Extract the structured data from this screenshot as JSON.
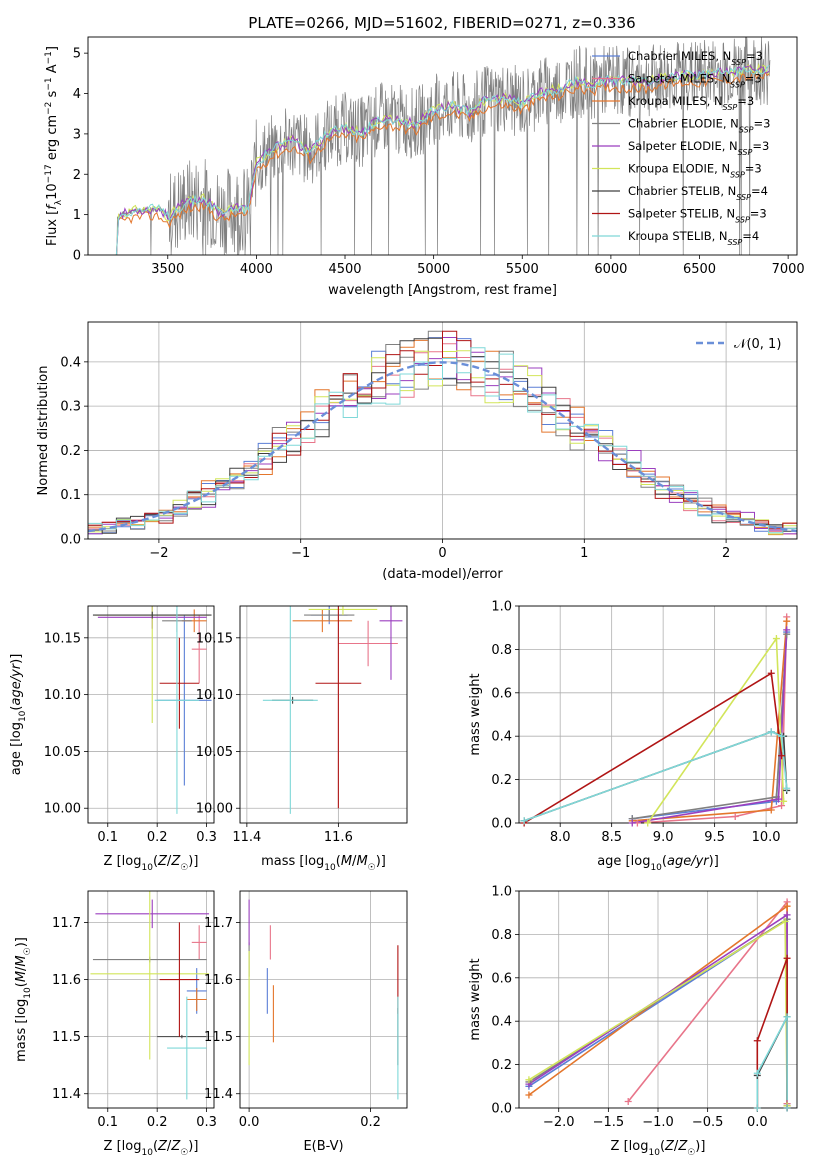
{
  "figure_title": "PLATE=0266, MJD=51602, FIBERID=0271, z=0.336",
  "colors": {
    "Chabrier MILES": "#5b7fd6",
    "Salpeter MILES": "#e8758a",
    "Kroupa MILES": "#e4762c",
    "Chabrier ELODIE": "#808080",
    "Salpeter ELODIE": "#9b3fbf",
    "Kroupa ELODIE": "#d2e55a",
    "Chabrier STELIB": "#404040",
    "Salpeter STELIB": "#b01515",
    "Kroupa STELIB": "#7fd8d8",
    "gaussian": "#6a8fd8"
  },
  "chart_data": [
    {
      "id": "spectrum",
      "type": "line",
      "title": "PLATE=0266, MJD=51602, FIBERID=0271, z=0.336",
      "xlabel": "wavelength [Angstrom, rest frame]",
      "ylabel": "Flux [f_λ 10^-17 erg cm^-2 s^-1 A^-1]",
      "xlim": [
        3050,
        7050
      ],
      "ylim": [
        0,
        5.4
      ],
      "xticks": [
        "3500",
        "4000",
        "4500",
        "5000",
        "5500",
        "6000",
        "6500",
        "7000"
      ],
      "yticks": [
        "0",
        "1",
        "2",
        "3",
        "4",
        "5"
      ],
      "legend": [
        "Chabrier MILES, N_SSP=3",
        "Salpeter MILES, N_SSP=3",
        "Kroupa MILES, N_SSP=3",
        "Chabrier ELODIE, N_SSP=3",
        "Salpeter ELODIE, N_SSP=3",
        "Kroupa ELODIE, N_SSP=3",
        "Chabrier STELIB, N_SSP=4",
        "Salpeter STELIB, N_SSP=3",
        "Kroupa STELIB, N_SSP=4"
      ],
      "continuum": {
        "x": [
          3210,
          3300,
          3450,
          3500,
          3600,
          3700,
          3800,
          3900,
          3950,
          4000,
          4100,
          4200,
          4300,
          4400,
          4500,
          4600,
          4700,
          4800,
          4900,
          5000,
          5100,
          5200,
          5300,
          5400,
          5500,
          5600,
          5700,
          5800,
          5900,
          6000,
          6100,
          6200,
          6300,
          6400,
          6500,
          6600,
          6700,
          6800,
          6900
        ],
        "y": [
          0.95,
          1.1,
          1.15,
          0.95,
          1.3,
          1.4,
          1.05,
          1.2,
          1.1,
          2.3,
          2.65,
          2.85,
          2.55,
          3.0,
          3.15,
          3.05,
          3.4,
          3.35,
          3.25,
          3.6,
          3.7,
          3.55,
          3.85,
          3.9,
          3.75,
          4.05,
          4.1,
          4.3,
          4.25,
          4.35,
          4.3,
          4.3,
          4.4,
          4.45,
          4.45,
          4.5,
          4.55,
          4.6,
          4.6
        ]
      }
    },
    {
      "id": "residuals",
      "type": "line",
      "xlabel": "(data-model)/error",
      "ylabel": "Normed distribution",
      "xlim": [
        -2.5,
        2.5
      ],
      "ylim": [
        0,
        0.49
      ],
      "xticks": [
        "−2",
        "−1",
        "0",
        "1",
        "2"
      ],
      "yticks": [
        "0.0",
        "0.1",
        "0.2",
        "0.3",
        "0.4"
      ],
      "legend": [
        "𝒩(0, 1)"
      ]
    },
    {
      "id": "age-vs-Z",
      "type": "scatter",
      "xlabel": "Z [log10(Z/Z☉)]",
      "ylabel": "age [log10(age/yr)]",
      "xlim": [
        0.06,
        0.315
      ],
      "ylim": [
        9.987,
        10.178
      ],
      "xticks": [
        "0.1",
        "0.2",
        "0.3"
      ],
      "yticks": [
        "10.00",
        "10.05",
        "10.10",
        "10.15"
      ],
      "errorbars": [
        {
          "series": "Chabrier MILES",
          "x": 0.255,
          "y": 10.095,
          "xerr": 0.055,
          "yerr": 0.075
        },
        {
          "series": "Salpeter MILES",
          "x": 0.285,
          "y": 10.14,
          "xerr": 0.015,
          "yerr": 0.03
        },
        {
          "series": "Kroupa MILES",
          "x": 0.275,
          "y": 10.165,
          "xerr": 0.025,
          "yerr": 0.01
        },
        {
          "series": "Chabrier ELODIE",
          "x": 0.24,
          "y": 10.165,
          "xerr": 0.03,
          "yerr": 0.01
        },
        {
          "series": "Salpeter ELODIE",
          "x": 0.19,
          "y": 10.168,
          "xerr": 0.11,
          "yerr": 0.01
        },
        {
          "series": "Kroupa ELODIE",
          "x": 0.19,
          "y": 10.17,
          "xerr": 0.115,
          "yerr": 0.095
        },
        {
          "series": "Chabrier STELIB",
          "x": 0.19,
          "y": 10.17,
          "xerr": 0.12,
          "yerr": 0.003
        },
        {
          "series": "Salpeter STELIB",
          "x": 0.245,
          "y": 10.11,
          "xerr": 0.04,
          "yerr": 0.04
        },
        {
          "series": "Kroupa STELIB",
          "x": 0.24,
          "y": 10.095,
          "xerr": 0.045,
          "yerr": 0.1
        }
      ]
    },
    {
      "id": "age-vs-mass",
      "type": "scatter",
      "xlabel": "mass [log10(M/M☉)]",
      "ylabel": "",
      "xlim": [
        11.385,
        11.75
      ],
      "ylim": [
        9.987,
        10.178
      ],
      "xticks": [
        "11.4",
        "11.6"
      ],
      "yticks": [
        "10.00",
        "10.05",
        "10.10",
        "10.15"
      ],
      "errorbars": [
        {
          "series": "Chabrier MILES",
          "x": 11.58,
          "y": 10.17,
          "xerr": 0.04,
          "yerr": 0.008
        },
        {
          "series": "Salpeter MILES",
          "x": 11.665,
          "y": 10.145,
          "xerr": 0.065,
          "yerr": 0.02
        },
        {
          "series": "Kroupa MILES",
          "x": 11.565,
          "y": 10.165,
          "xerr": 0.065,
          "yerr": 0.01
        },
        {
          "series": "Chabrier ELODIE",
          "x": 11.58,
          "y": 10.17,
          "xerr": 0.055,
          "yerr": 0.005
        },
        {
          "series": "Salpeter ELODIE",
          "x": 11.715,
          "y": 10.165,
          "xerr": 0.025,
          "yerr": 0.052
        },
        {
          "series": "Kroupa ELODIE",
          "x": 11.61,
          "y": 10.175,
          "xerr": 0.075,
          "yerr": 0.005
        },
        {
          "series": "Chabrier STELIB",
          "x": 11.5,
          "y": 10.095,
          "xerr": 0.045,
          "yerr": 0.003
        },
        {
          "series": "Salpeter STELIB",
          "x": 11.6,
          "y": 10.11,
          "xerr": 0.05,
          "yerr": 0.11
        },
        {
          "series": "Kroupa STELIB",
          "x": 11.495,
          "y": 10.095,
          "xerr": 0.06,
          "yerr": 0.1
        }
      ]
    },
    {
      "id": "mass-weight-vs-age",
      "type": "line",
      "xlabel": "age [log10(age/yr)]",
      "ylabel": "mass weight",
      "xlim": [
        7.6,
        10.3
      ],
      "ylim": [
        0,
        1.0
      ],
      "xticks": [
        "8.0",
        "8.5",
        "9.0",
        "9.5",
        "10.0"
      ],
      "yticks": [
        "0.0",
        "0.2",
        "0.4",
        "0.6",
        "0.8",
        "1.0"
      ],
      "series": [
        {
          "name": "Chabrier MILES",
          "x": [
            8.7,
            10.1,
            10.2
          ],
          "y": [
            0.02,
            0.1,
            0.88
          ]
        },
        {
          "name": "Salpeter MILES",
          "x": [
            8.75,
            9.7,
            10.15,
            10.2
          ],
          "y": [
            0.0,
            0.03,
            0.08,
            0.95
          ]
        },
        {
          "name": "Kroupa MILES",
          "x": [
            8.7,
            10.05,
            10.2
          ],
          "y": [
            0.01,
            0.06,
            0.93
          ]
        },
        {
          "name": "Chabrier ELODIE",
          "x": [
            8.7,
            10.1,
            10.2
          ],
          "y": [
            0.02,
            0.12,
            0.87
          ]
        },
        {
          "name": "Salpeter ELODIE",
          "x": [
            8.7,
            10.12,
            10.2
          ],
          "y": [
            0.0,
            0.11,
            0.89
          ]
        },
        {
          "name": "Kroupa ELODIE",
          "x": [
            8.85,
            10.1,
            10.17
          ],
          "y": [
            0.0,
            0.85,
            0.1
          ]
        },
        {
          "name": "Chabrier STELIB",
          "x": [
            7.65,
            10.05,
            10.17,
            10.2
          ],
          "y": [
            0.01,
            0.42,
            0.4,
            0.15
          ]
        },
        {
          "name": "Salpeter STELIB",
          "x": [
            7.65,
            10.05,
            10.15
          ],
          "y": [
            0.0,
            0.69,
            0.31
          ]
        },
        {
          "name": "Kroupa STELIB",
          "x": [
            7.65,
            10.05,
            10.15,
            10.2
          ],
          "y": [
            0.01,
            0.42,
            0.4,
            0.16
          ]
        }
      ]
    },
    {
      "id": "mass-vs-Z",
      "type": "scatter",
      "xlabel": "Z [log10(Z/Z☉)]",
      "ylabel": "mass [log10(M/M☉)]",
      "xlim": [
        0.06,
        0.315
      ],
      "ylim": [
        11.375,
        11.755
      ],
      "xticks": [
        "0.1",
        "0.2",
        "0.3"
      ],
      "yticks": [
        "11.4",
        "11.5",
        "11.6",
        "11.7"
      ],
      "errorbars": [
        {
          "series": "Chabrier MILES",
          "x": 0.28,
          "y": 11.58,
          "xerr": 0.02,
          "yerr": 0.04
        },
        {
          "series": "Salpeter MILES",
          "x": 0.285,
          "y": 11.665,
          "xerr": 0.015,
          "yerr": 0.03
        },
        {
          "series": "Kroupa MILES",
          "x": 0.28,
          "y": 11.565,
          "xerr": 0.02,
          "yerr": 0.02
        },
        {
          "series": "Chabrier ELODIE",
          "x": 0.185,
          "y": 11.635,
          "xerr": 0.115,
          "yerr": 0.005
        },
        {
          "series": "Salpeter ELODIE",
          "x": 0.19,
          "y": 11.715,
          "xerr": 0.115,
          "yerr": 0.025
        },
        {
          "series": "Kroupa ELODIE",
          "x": 0.185,
          "y": 11.61,
          "xerr": 0.12,
          "yerr": 0.15
        },
        {
          "series": "Chabrier STELIB",
          "x": 0.25,
          "y": 11.5,
          "xerr": 0.05,
          "yerr": 0.003
        },
        {
          "series": "Salpeter STELIB",
          "x": 0.245,
          "y": 11.6,
          "xerr": 0.04,
          "yerr": 0.1
        },
        {
          "series": "Kroupa STELIB",
          "x": 0.26,
          "y": 11.48,
          "xerr": 0.04,
          "yerr": 0.09
        }
      ]
    },
    {
      "id": "mass-vs-EBV",
      "type": "scatter",
      "xlabel": "E(B-V)",
      "ylabel": "",
      "xlim": [
        -0.015,
        0.26
      ],
      "ylim": [
        11.375,
        11.755
      ],
      "xticks": [
        "0.0",
        "0.2"
      ],
      "yticks": [
        "11.4",
        "11.5",
        "11.6",
        "11.7"
      ],
      "errorbars": [
        {
          "series": "Chabrier MILES",
          "x": 0.03,
          "y": 11.58,
          "xerr": 0,
          "yerr": 0.04
        },
        {
          "series": "Salpeter MILES",
          "x": 0.035,
          "y": 11.665,
          "xerr": 0,
          "yerr": 0.03
        },
        {
          "series": "Kroupa MILES",
          "x": 0.04,
          "y": 11.54,
          "xerr": 0,
          "yerr": 0.05
        },
        {
          "series": "Chabrier ELODIE",
          "x": 0.0,
          "y": 11.635,
          "xerr": 0,
          "yerr": 0.03
        },
        {
          "series": "Salpeter ELODIE",
          "x": 0.0,
          "y": 11.7,
          "xerr": 0,
          "yerr": 0.04
        },
        {
          "series": "Kroupa ELODIE",
          "x": 0.0,
          "y": 11.55,
          "xerr": 0,
          "yerr": 0.1
        },
        {
          "series": "Chabrier STELIB",
          "x": 0.245,
          "y": 11.5,
          "xerr": 0,
          "yerr": 0.05
        },
        {
          "series": "Salpeter STELIB",
          "x": 0.245,
          "y": 11.6,
          "xerr": 0,
          "yerr": 0.06
        },
        {
          "series": "Kroupa STELIB",
          "x": 0.245,
          "y": 11.48,
          "xerr": 0,
          "yerr": 0.09
        }
      ]
    },
    {
      "id": "mass-weight-vs-Z",
      "type": "line",
      "xlabel": "Z [log10(Z/Z☉)]",
      "ylabel": "mass weight",
      "xlim": [
        -2.4,
        0.4
      ],
      "ylim": [
        0,
        1.0
      ],
      "xticks": [
        "−2.0",
        "−1.5",
        "−1.0",
        "−0.5",
        "0.0"
      ],
      "yticks": [
        "0.0",
        "0.2",
        "0.4",
        "0.6",
        "0.8",
        "1.0"
      ],
      "series": [
        {
          "name": "Chabrier MILES",
          "x": [
            -2.3,
            0.3,
            0.3
          ],
          "y": [
            0.1,
            0.87,
            0.02
          ]
        },
        {
          "name": "Salpeter MILES",
          "x": [
            -1.3,
            0.3,
            0.3
          ],
          "y": [
            0.03,
            0.95,
            0.02
          ]
        },
        {
          "name": "Kroupa MILES",
          "x": [
            -2.3,
            0.3,
            0.3
          ],
          "y": [
            0.06,
            0.93,
            0.01
          ]
        },
        {
          "name": "Chabrier ELODIE",
          "x": [
            -2.3,
            0.3,
            0.3
          ],
          "y": [
            0.12,
            0.87,
            0.01
          ]
        },
        {
          "name": "Salpeter ELODIE",
          "x": [
            -2.3,
            0.3,
            0.3
          ],
          "y": [
            0.11,
            0.89,
            0.0
          ]
        },
        {
          "name": "Kroupa ELODIE",
          "x": [
            -2.3,
            0.28,
            0.3
          ],
          "y": [
            0.13,
            0.86,
            0.01
          ]
        },
        {
          "name": "Chabrier STELIB",
          "x": [
            0.0,
            0.0,
            0.3,
            0.3
          ],
          "y": [
            0.0,
            0.15,
            0.42,
            0.0
          ]
        },
        {
          "name": "Salpeter STELIB",
          "x": [
            0.0,
            0.0,
            0.3,
            0.3
          ],
          "y": [
            0.0,
            0.31,
            0.69,
            0.0
          ]
        },
        {
          "name": "Kroupa STELIB",
          "x": [
            0.0,
            0.0,
            0.3,
            0.3
          ],
          "y": [
            0.0,
            0.16,
            0.42,
            0.0
          ]
        }
      ]
    }
  ]
}
